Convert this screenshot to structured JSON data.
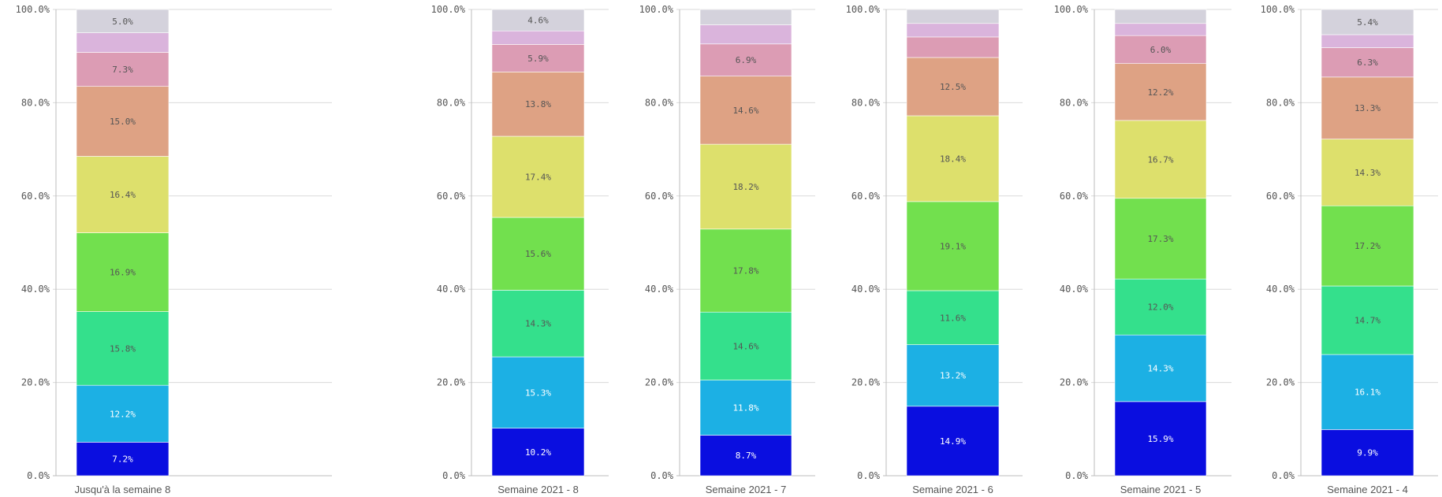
{
  "chart_data": {
    "type": "bar",
    "stacked": true,
    "normalized": true,
    "panels": [
      {
        "category": "Jusqu'à la semaine 8",
        "values": [
          7.2,
          12.2,
          15.8,
          16.9,
          16.4,
          15.0,
          7.3,
          4.2,
          5.0
        ],
        "labels": [
          "7.2%",
          "12.2%",
          "15.8%",
          "16.9%",
          "16.4%",
          "15.0%",
          "7.3%",
          "",
          "5.0%"
        ]
      },
      {
        "category": "Semaine 2021 - 8",
        "values": [
          10.2,
          15.3,
          14.3,
          15.6,
          17.4,
          13.8,
          5.9,
          2.9,
          4.6
        ],
        "labels": [
          "10.2%",
          "15.3%",
          "14.3%",
          "15.6%",
          "17.4%",
          "13.8%",
          "5.9%",
          "",
          "4.6%"
        ]
      },
      {
        "category": "Semaine 2021 - 7",
        "values": [
          8.7,
          11.8,
          14.6,
          17.8,
          18.2,
          14.6,
          6.9,
          4.1,
          3.3
        ],
        "labels": [
          "8.7%",
          "11.8%",
          "14.6%",
          "17.8%",
          "18.2%",
          "14.6%",
          "6.9%",
          "",
          ""
        ]
      },
      {
        "category": "Semaine 2021 - 6",
        "values": [
          14.9,
          13.2,
          11.6,
          19.1,
          18.4,
          12.5,
          4.4,
          2.9,
          3.0
        ],
        "labels": [
          "14.9%",
          "13.2%",
          "11.6%",
          "19.1%",
          "18.4%",
          "12.5%",
          "",
          "",
          ""
        ]
      },
      {
        "category": "Semaine 2021 - 5",
        "values": [
          15.9,
          14.3,
          12.0,
          17.3,
          16.7,
          12.2,
          6.0,
          2.6,
          3.0
        ],
        "labels": [
          "15.9%",
          "14.3%",
          "12.0%",
          "17.3%",
          "16.7%",
          "12.2%",
          "6.0%",
          "",
          ""
        ]
      },
      {
        "category": "Semaine 2021 - 4",
        "values": [
          9.9,
          16.1,
          14.7,
          17.2,
          14.3,
          13.3,
          6.3,
          2.8,
          5.4
        ],
        "labels": [
          "9.9%",
          "16.1%",
          "14.7%",
          "17.2%",
          "14.3%",
          "13.3%",
          "6.3%",
          "",
          "5.4%"
        ]
      }
    ],
    "segment_colors": [
      "#0a0ee0",
      "#1cb0e4",
      "#34e08c",
      "#72e04e",
      "#dde06c",
      "#dea284",
      "#dc9cb4",
      "#dab4dc",
      "#d4d2dc"
    ],
    "label_colors": [
      "#ffffff",
      "#ffffff",
      "#555555",
      "#555555",
      "#555555",
      "#555555",
      "#555555",
      "#555555",
      "#555555"
    ],
    "y_ticks": [
      "0.0%",
      "20.0%",
      "40.0%",
      "60.0%",
      "80.0%",
      "100.0%"
    ],
    "ylim": [
      0,
      100
    ],
    "grid": true,
    "legend": "none"
  }
}
